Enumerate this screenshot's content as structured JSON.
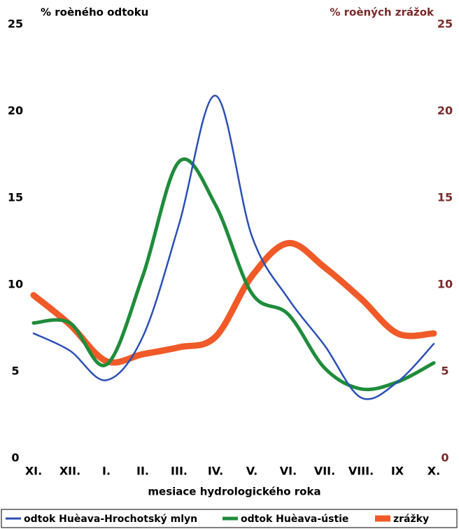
{
  "chart_data": {
    "type": "line",
    "y_label": "% roèného odtoku",
    "y2_label": "% roèných zrážok",
    "x_label": "mesiace hydrologického roka",
    "categories": [
      "XI.",
      "XII.",
      "I.",
      "II.",
      "III.",
      "IV.",
      "V.",
      "VI.",
      "VII.",
      "VIII.",
      "IX",
      "X."
    ],
    "ylim": [
      0,
      25
    ],
    "yticks": [
      0,
      5,
      10,
      15,
      20,
      25
    ],
    "y2lim": [
      0,
      25
    ],
    "y2ticks": [
      0,
      5,
      10,
      15,
      20,
      25
    ],
    "y2_color": "#7a2a2a",
    "series": [
      {
        "name": "odtok Huèava-Hrochotský mlyn",
        "color": "#2a4fb5",
        "width": 2.5,
        "values": [
          7.2,
          6.2,
          4.5,
          7.0,
          13.5,
          20.9,
          12.8,
          9.2,
          6.5,
          3.5,
          4.4,
          6.6
        ]
      },
      {
        "name": "odtok Huèava-ústie",
        "color": "#1f8c3b",
        "width": 5,
        "values": [
          7.8,
          7.8,
          5.4,
          10.5,
          17.1,
          14.6,
          9.5,
          8.3,
          5.2,
          4.0,
          4.4,
          5.5
        ]
      },
      {
        "name": "zrážky",
        "color": "#f05a28",
        "width": 9,
        "axis": "y2",
        "values": [
          9.4,
          7.7,
          5.6,
          6.0,
          6.4,
          7.0,
          10.5,
          12.4,
          11.0,
          9.2,
          7.2,
          7.2
        ]
      }
    ]
  }
}
